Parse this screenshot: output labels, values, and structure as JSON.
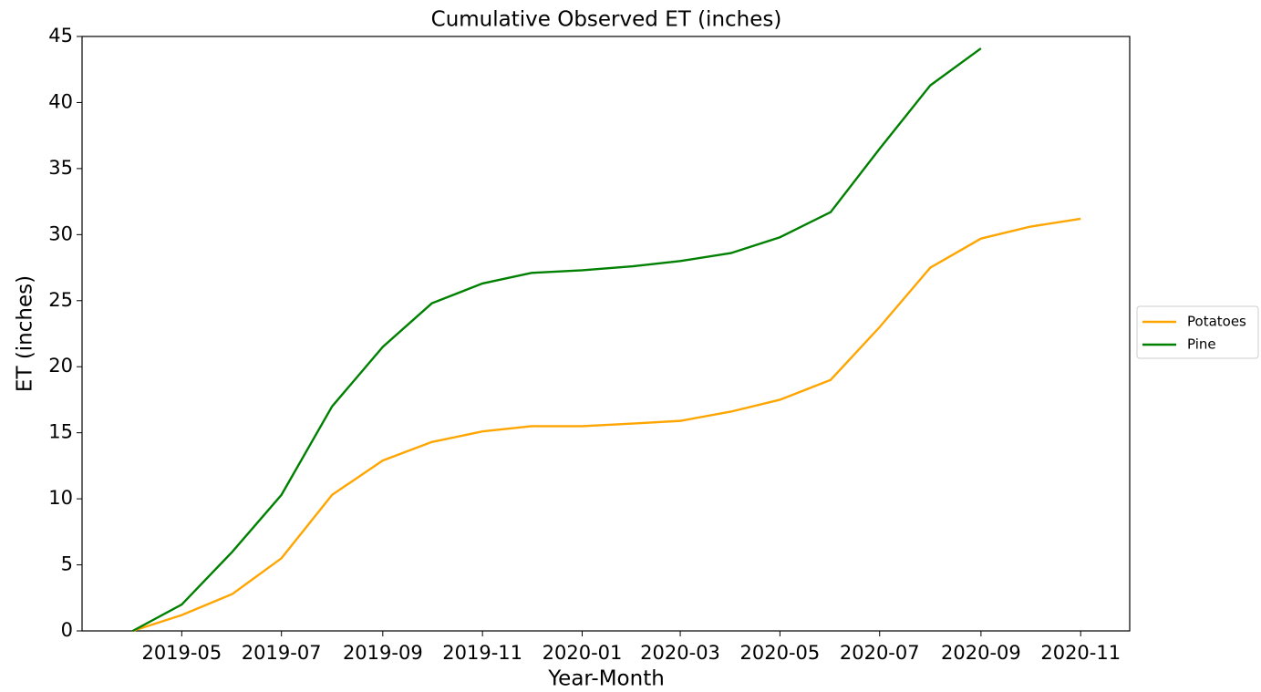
{
  "chart_data": {
    "type": "line",
    "title": "Cumulative Observed ET (inches)",
    "x_label": "Year-Month",
    "y_label": "ET (inches)",
    "x": [
      "2019-04",
      "2019-05",
      "2019-06",
      "2019-07",
      "2019-08",
      "2019-09",
      "2019-10",
      "2019-11",
      "2019-12",
      "2020-01",
      "2020-02",
      "2020-03",
      "2020-04",
      "2020-05",
      "2020-06",
      "2020-07",
      "2020-08",
      "2020-09",
      "2020-10",
      "2020-11"
    ],
    "series": [
      {
        "name": "Potatoes",
        "color": "#ffa500",
        "values": [
          0,
          1.2,
          2.8,
          5.5,
          10.3,
          12.9,
          14.3,
          15.1,
          15.5,
          15.5,
          15.7,
          15.9,
          16.6,
          17.5,
          19.0,
          23.0,
          27.5,
          29.7,
          30.6,
          31.2
        ]
      },
      {
        "name": "Pine",
        "color": "#008000",
        "values": [
          0,
          2.0,
          6.0,
          10.3,
          17.0,
          21.5,
          24.8,
          26.3,
          27.1,
          27.3,
          27.6,
          28.0,
          28.6,
          29.8,
          31.7,
          36.5,
          41.3,
          44.1,
          null,
          null
        ]
      }
    ],
    "xlim": [
      "2019-03",
      "2020-12"
    ],
    "xticks": [
      "2019-05",
      "2019-07",
      "2019-09",
      "2019-11",
      "2020-01",
      "2020-03",
      "2020-05",
      "2020-07",
      "2020-09",
      "2020-11"
    ],
    "ylim": [
      0,
      45
    ],
    "yticks": [
      0,
      5,
      10,
      15,
      20,
      25,
      30,
      35,
      40,
      45
    ],
    "grid": false,
    "legend": "right outside"
  }
}
